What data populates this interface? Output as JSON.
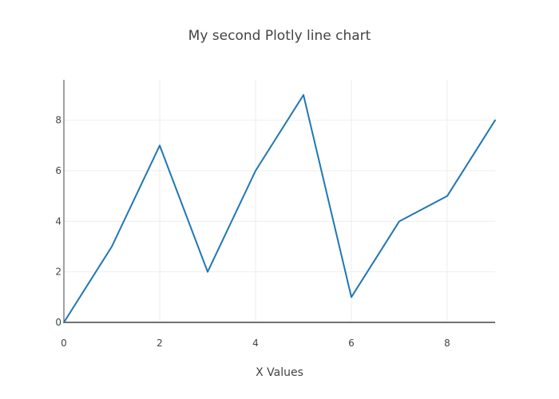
{
  "chart_data": {
    "type": "line",
    "title": "My second Plotly line chart",
    "xlabel": "X Values",
    "ylabel": "",
    "x": [
      0,
      1,
      2,
      3,
      4,
      5,
      6,
      7,
      8,
      9
    ],
    "series": [
      {
        "values": [
          0,
          3,
          7,
          2,
          6,
          9,
          1,
          4,
          5,
          8
        ],
        "color": "#1f77b4"
      }
    ],
    "xlim": [
      0,
      9
    ],
    "ylim": [
      0,
      9.6
    ],
    "x_ticks": [
      {
        "value": 0,
        "label": "0"
      },
      {
        "value": 2,
        "label": "2"
      },
      {
        "value": 4,
        "label": "4"
      },
      {
        "value": 6,
        "label": "6"
      },
      {
        "value": 8,
        "label": "8"
      }
    ],
    "y_ticks": [
      {
        "value": 0,
        "label": "0"
      },
      {
        "value": 2,
        "label": "2"
      },
      {
        "value": 4,
        "label": "4"
      },
      {
        "value": 6,
        "label": "6"
      },
      {
        "value": 8,
        "label": "8"
      }
    ],
    "grid": true,
    "colors": {
      "grid": "#eeeeee",
      "axis": "#444444",
      "text": "#444444"
    }
  }
}
